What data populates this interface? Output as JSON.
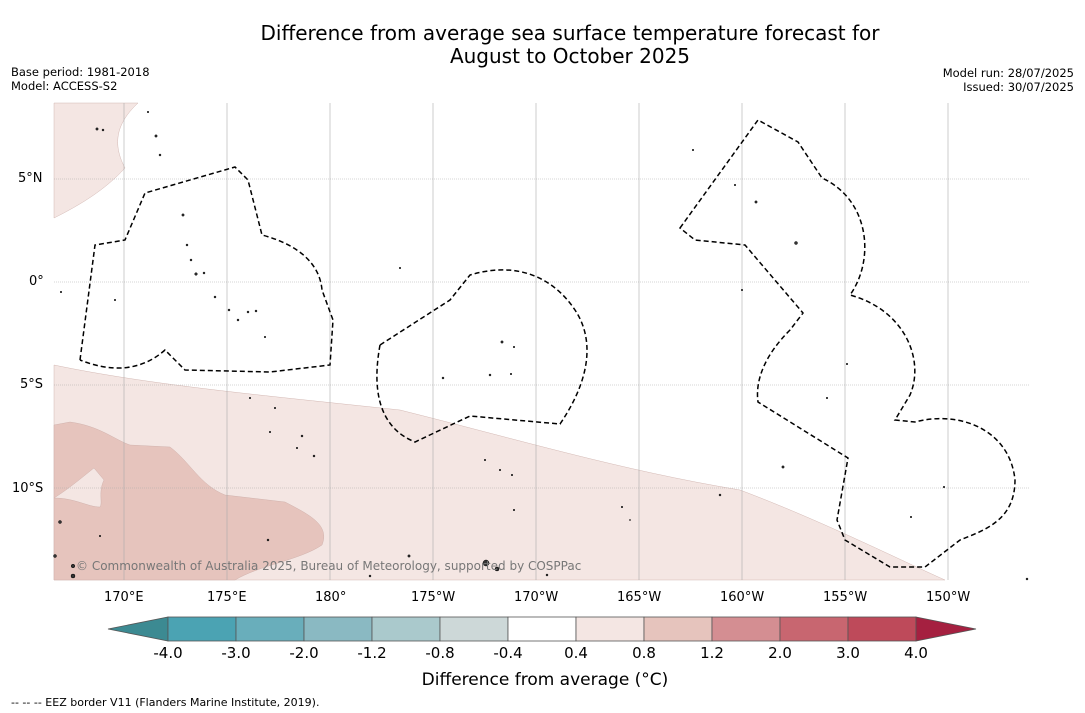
{
  "title_line1": "Difference from average sea surface temperature forecast for",
  "title_line2": "August to October 2025",
  "meta_left": {
    "base_period": "Base period: 1981-2018",
    "model": "Model: ACCESS-S2"
  },
  "meta_right": {
    "model_run": "Model run: 28/07/2025",
    "issued": "Issued: 30/07/2025"
  },
  "lat_labels": [
    "5°N",
    "0°",
    "5°S",
    "10°S"
  ],
  "lon_labels": [
    "170°E",
    "175°E",
    "180°",
    "175°W",
    "170°W",
    "165°W",
    "160°W",
    "155°W",
    "150°W"
  ],
  "copyright": "© Commonwealth of Australia 2025, Bureau of Meteorology, supported by COSPPac",
  "colorbar": {
    "labels": [
      "-4.0",
      "-3.0",
      "-2.0",
      "-1.2",
      "-0.8",
      "-0.4",
      "0.4",
      "0.8",
      "1.2",
      "2.0",
      "3.0",
      "4.0"
    ],
    "colors": [
      "#3c8a92",
      "#4ba3b3",
      "#69aebb",
      "#8ab9c2",
      "#aac9cc",
      "#cdd8d8",
      "#ffffff",
      "#f4e6e3",
      "#e6c4bd",
      "#d48e92",
      "#c86670",
      "#be4a5a",
      "#a52040"
    ],
    "title": "Difference from average ($^\\circ$C)",
    "title_display": "Difference from average (°C)"
  },
  "footnote": "--  --  -- EEZ border V11 (Flanders Marine Institute, 2019)."
}
